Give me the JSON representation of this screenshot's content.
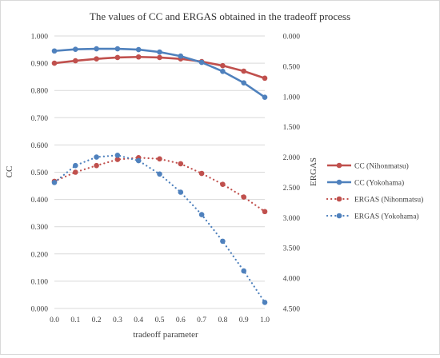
{
  "chart_data": {
    "type": "line",
    "title": "The values of CC and ERGAS obtained in the tradeoff process",
    "xlabel": "tradeoff parameter",
    "ylabel": "CC",
    "y2label": "ERGAS",
    "x": [
      0.0,
      0.1,
      0.2,
      0.3,
      0.4,
      0.5,
      0.6,
      0.7,
      0.8,
      0.9,
      1.0
    ],
    "x_tick_labels": [
      "0.0",
      "0.1",
      "0.2",
      "0.3",
      "0.4",
      "0.5",
      "0.6",
      "0.7",
      "0.8",
      "0.9",
      "1.0"
    ],
    "ylim": [
      0,
      1
    ],
    "y_ticks": [
      0,
      0.1,
      0.2,
      0.3,
      0.4,
      0.5,
      0.6,
      0.7,
      0.8,
      0.9,
      1.0
    ],
    "y_tick_labels": [
      "0.000",
      "0.100",
      "0.200",
      "0.300",
      "0.400",
      "0.500",
      "0.600",
      "0.700",
      "0.800",
      "0.900",
      "1.000"
    ],
    "y2lim": [
      4.5,
      0
    ],
    "y2_inverted": true,
    "y2_ticks": [
      0,
      0.5,
      1,
      1.5,
      2,
      2.5,
      3,
      3.5,
      4,
      4.5
    ],
    "y2_tick_labels": [
      "0.000",
      "0.500",
      "1.000",
      "1.500",
      "2.000",
      "2.500",
      "3.000",
      "3.500",
      "4.000",
      "4.500"
    ],
    "grid": true,
    "legend_position": "right",
    "series": [
      {
        "name": "CC (Nihonmatsu)",
        "axis": "left",
        "style": "solid",
        "color": "#c0504d",
        "values": [
          0.9,
          0.909,
          0.916,
          0.921,
          0.923,
          0.921,
          0.916,
          0.906,
          0.891,
          0.871,
          0.845
        ]
      },
      {
        "name": "CC (Yokohama)",
        "axis": "left",
        "style": "solid",
        "color": "#4f81bd",
        "values": [
          0.945,
          0.951,
          0.953,
          0.953,
          0.95,
          0.941,
          0.926,
          0.903,
          0.87,
          0.828,
          0.775
        ]
      },
      {
        "name": "ERGAS (Nihonmatsu)",
        "axis": "right",
        "style": "dotted",
        "color": "#c0504d",
        "values": [
          2.4,
          2.25,
          2.14,
          2.04,
          2.01,
          2.03,
          2.11,
          2.27,
          2.45,
          2.66,
          2.9
        ]
      },
      {
        "name": "ERGAS (Yokohama)",
        "axis": "right",
        "style": "dotted",
        "color": "#4f81bd",
        "values": [
          2.42,
          2.14,
          2.0,
          1.97,
          2.06,
          2.28,
          2.58,
          2.95,
          3.39,
          3.88,
          4.4
        ]
      }
    ]
  }
}
